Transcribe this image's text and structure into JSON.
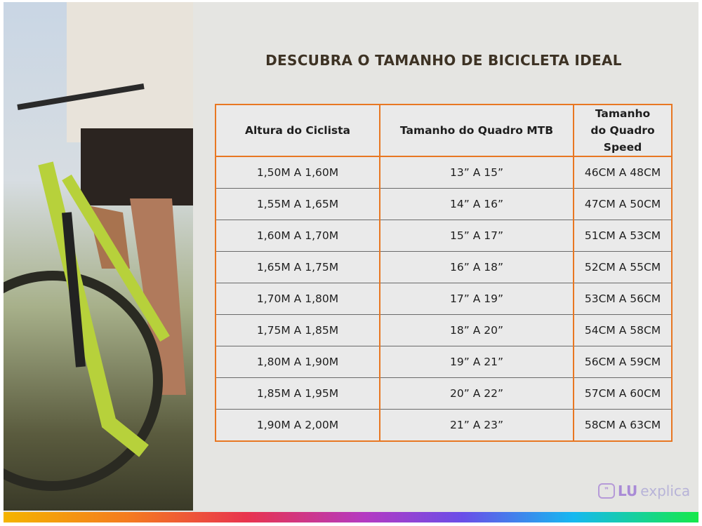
{
  "title": "DESCUBRA O TAMANHO DE BICICLETA IDEAL",
  "table": {
    "headers": [
      "Altura do Ciclista",
      "Tamanho do Quadro MTB",
      "Tamanho do Quadro Speed"
    ],
    "rows": [
      [
        "1,50M A 1,60M",
        "13” A 15”",
        "46CM A 48CM"
      ],
      [
        "1,55M A 1,65M",
        "14” A 16”",
        "47CM A 50CM"
      ],
      [
        "1,60M A 1,70M",
        "15” A 17”",
        "51CM A 53CM"
      ],
      [
        "1,65M A 1,75M",
        "16” A 18”",
        "52CM A 55CM"
      ],
      [
        "1,70M A 1,80M",
        "17” A 19”",
        "53CM A 56CM"
      ],
      [
        "1,75M A 1,85M",
        "18” A 20”",
        "54CM A 58CM"
      ],
      [
        "1,80M A 1,90M",
        "19” A 21”",
        "56CM A 59CM"
      ],
      [
        "1,85M A 1,95M",
        "20” A 22”",
        "57CM A 60CM"
      ],
      [
        "1,90M A 2,00M",
        "21” A 23”",
        "58CM A 63CM"
      ]
    ]
  },
  "logo": {
    "part1": "LU",
    "part2": "explica"
  },
  "colors": {
    "accent": "#e87722",
    "title": "#3d3224",
    "logo": "#a98bd6"
  }
}
